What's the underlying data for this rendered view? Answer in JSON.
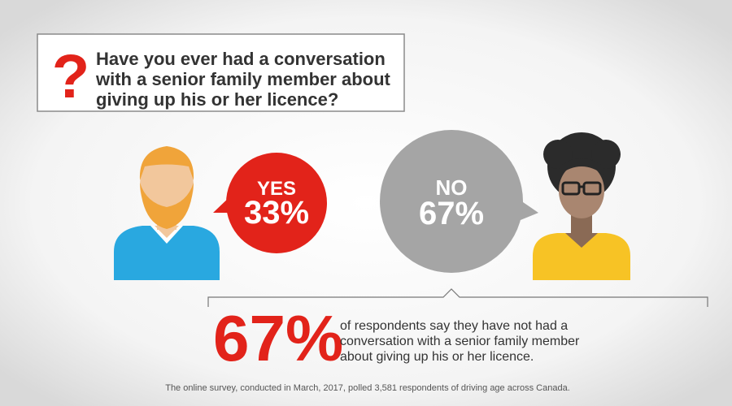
{
  "question": {
    "mark": "?",
    "lines": [
      "Have you ever had a conversation",
      "with a senior family member about",
      "giving up his or her licence?"
    ]
  },
  "answers": [
    {
      "label": "YES",
      "value": "33%"
    },
    {
      "label": "NO",
      "value": "67%"
    }
  ],
  "highlight": {
    "value": "67%",
    "lines": [
      "of respondents say they have not had a",
      "conversation with a senior family member",
      "about giving up his or her licence."
    ]
  },
  "footnote": "The online survey, conducted in March, 2017, polled 3,581 respondents of driving age across Canada."
}
